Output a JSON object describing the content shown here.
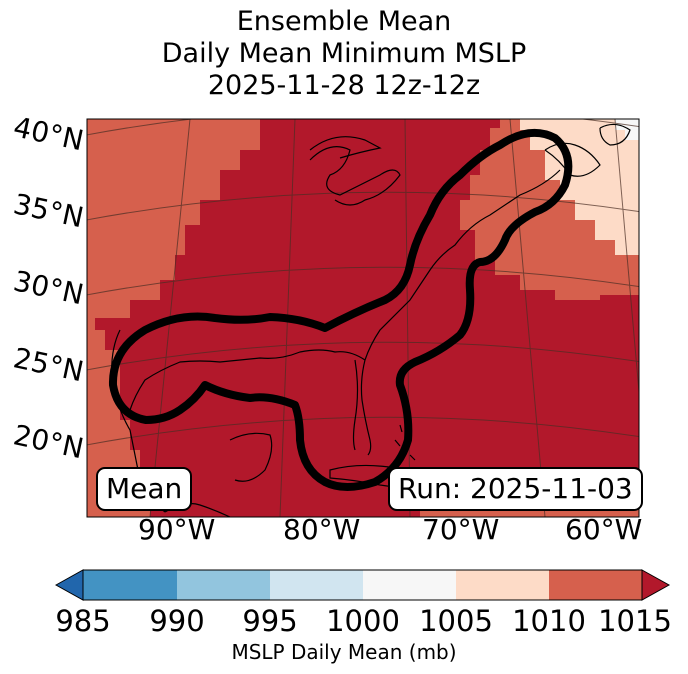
{
  "title": {
    "line1": "Ensemble Mean",
    "line2": "Daily Mean Minimum MSLP",
    "line3": "2025-11-28 12z-12z"
  },
  "map": {
    "lat_labels": [
      "40°N",
      "35°N",
      "30°N",
      "25°N",
      "20°N"
    ],
    "lon_labels": [
      "90°W",
      "80°W",
      "70°W",
      "60°W"
    ],
    "mean_box": "Mean",
    "run_box": "Run: 2025-11-03",
    "contour_level": "1010 mb"
  },
  "colorbar": {
    "ticks": [
      "985",
      "990",
      "995",
      "1000",
      "1005",
      "1010",
      "1015"
    ],
    "label": "MSLP Daily Mean (mb)",
    "colors": {
      "below": "#2166ac",
      "985-990": "#4393c3",
      "990-995": "#92c5de",
      "995-1000": "#d1e5f0",
      "1000-1005": "#f7f7f7",
      "1005-1010": "#fddbc7",
      "1010-1015": "#d6604d",
      "above": "#b2182b"
    }
  }
}
